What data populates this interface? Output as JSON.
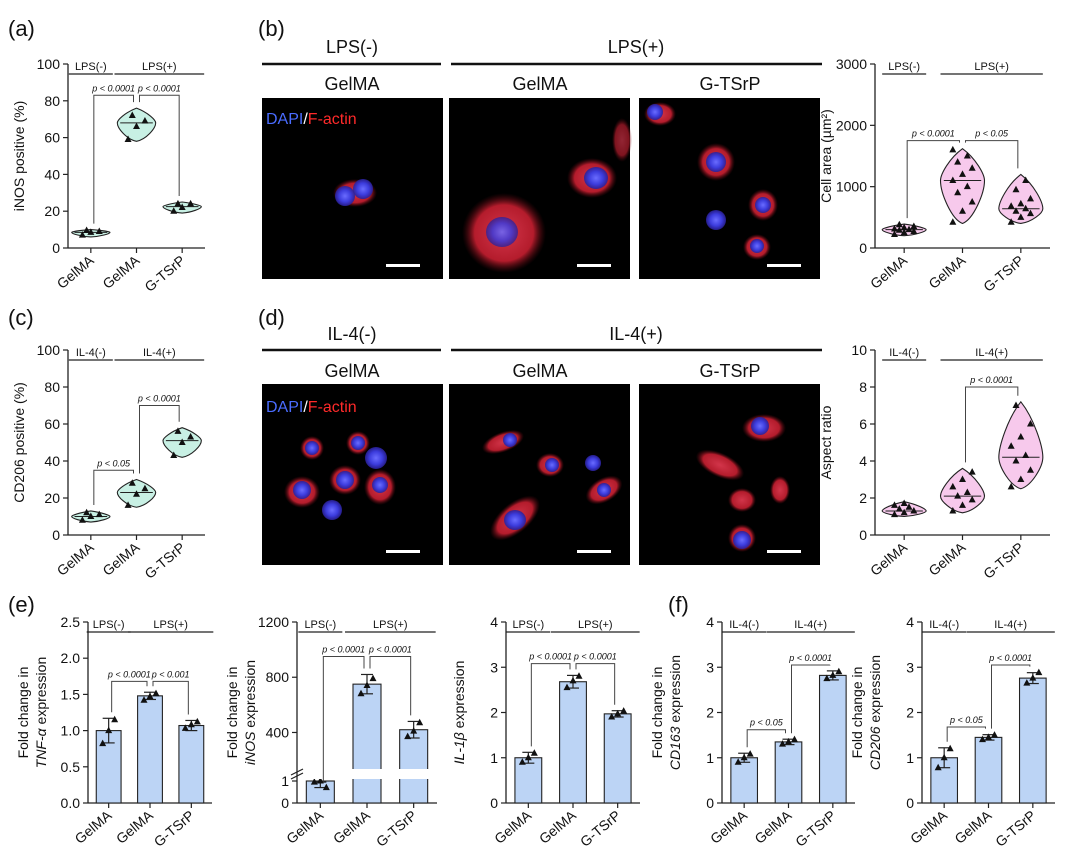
{
  "panel_letters": [
    "(a)",
    "(b)",
    "(c)",
    "(d)",
    "(e)",
    "(f)"
  ],
  "micrographs": {
    "b": {
      "headers": {
        "left": "LPS(-)",
        "right": "LPS(+)"
      },
      "subheaders": [
        "GelMA",
        "GelMA",
        "G-TSrP"
      ],
      "stain": {
        "a": "DAPI",
        "sep": "/",
        "b": "F-actin"
      }
    },
    "d": {
      "headers": {
        "left": "IL-4(-)",
        "right": "IL-4(+)"
      },
      "subheaders": [
        "GelMA",
        "GelMA",
        "G-TSrP"
      ],
      "stain": {
        "a": "DAPI",
        "sep": "/",
        "b": "F-actin"
      }
    }
  },
  "chart_data": [
    {
      "id": "a",
      "type": "violin",
      "categories": [
        "GelMA",
        "GelMA",
        "G-TSrP"
      ],
      "ylabel": "iNOS positive (%)",
      "ylim": [
        0,
        100
      ],
      "yticks": [
        0,
        20,
        40,
        60,
        80,
        100
      ],
      "groups": [
        {
          "label": "LPS(-)",
          "from": 0,
          "to": 0
        },
        {
          "label": "LPS(+)",
          "from": 1,
          "to": 2
        }
      ],
      "points": [
        [
          7,
          8.5,
          9,
          9.5
        ],
        [
          59,
          66,
          69,
          72
        ],
        [
          20,
          22,
          24,
          24
        ]
      ],
      "ranges": [
        [
          6,
          10
        ],
        [
          58,
          76
        ],
        [
          19,
          25
        ]
      ],
      "medians": [
        8.5,
        68,
        22.5
      ],
      "comparisons": [
        {
          "a": 0,
          "b": 1,
          "label": "p < 0.0001",
          "y": 83
        },
        {
          "a": 1,
          "b": 2,
          "label": "p < 0.0001",
          "y": 83
        }
      ]
    },
    {
      "id": "b",
      "type": "violin",
      "categories": [
        "GelMA",
        "GelMA",
        "G-TSrP"
      ],
      "ylabel": "Cell area (µm²)",
      "ylim": [
        0,
        3000
      ],
      "yticks": [
        0,
        1000,
        2000,
        3000
      ],
      "groups": [
        {
          "label": "LPS(-)",
          "from": 0,
          "to": 0
        },
        {
          "label": "LPS(+)",
          "from": 1,
          "to": 2
        }
      ],
      "points": [
        [
          220,
          250,
          270,
          290,
          300,
          310,
          330,
          350,
          380
        ],
        [
          420,
          600,
          750,
          900,
          1000,
          1100,
          1200,
          1300,
          1400,
          1500,
          1600
        ],
        [
          420,
          500,
          560,
          600,
          640,
          680,
          720,
          800,
          950,
          1100
        ]
      ],
      "ranges": [
        [
          200,
          390
        ],
        [
          400,
          1620
        ],
        [
          400,
          1200
        ]
      ],
      "medians": [
        300,
        1100,
        640
      ],
      "comparisons": [
        {
          "a": 0,
          "b": 1,
          "label": "p < 0.0001",
          "y": 1750
        },
        {
          "a": 1,
          "b": 2,
          "label": "p < 0.05",
          "y": 1750
        }
      ]
    },
    {
      "id": "c",
      "type": "violin",
      "categories": [
        "GelMA",
        "GelMA",
        "G-TSrP"
      ],
      "ylabel": "CD206 positive (%)",
      "ylim": [
        0,
        100
      ],
      "yticks": [
        0,
        20,
        40,
        60,
        80,
        100
      ],
      "groups": [
        {
          "label": "IL-4(-)",
          "from": 0,
          "to": 0
        },
        {
          "label": "IL-4(+)",
          "from": 1,
          "to": 2
        }
      ],
      "points": [
        [
          8,
          10,
          11,
          12
        ],
        [
          16,
          22,
          25,
          28
        ],
        [
          43,
          50,
          53,
          56
        ]
      ],
      "ranges": [
        [
          7,
          13
        ],
        [
          15,
          30
        ],
        [
          42,
          58
        ]
      ],
      "medians": [
        10,
        23,
        51
      ],
      "comparisons": [
        {
          "a": 0,
          "b": 1,
          "label": "p < 0.05",
          "y": 35
        },
        {
          "a": 1,
          "b": 2,
          "label": "p < 0.0001",
          "y": 70
        }
      ]
    },
    {
      "id": "d",
      "type": "violin",
      "categories": [
        "GelMA",
        "GelMA",
        "G-TSrP"
      ],
      "ylabel": "Aspect ratio",
      "ylim": [
        0,
        10
      ],
      "yticks": [
        0,
        2,
        4,
        6,
        8,
        10
      ],
      "groups": [
        {
          "label": "IL-4(-)",
          "from": 0,
          "to": 0
        },
        {
          "label": "IL-4(+)",
          "from": 1,
          "to": 2
        }
      ],
      "points": [
        [
          1.1,
          1.2,
          1.3,
          1.4,
          1.5,
          1.6,
          1.7
        ],
        [
          1.3,
          1.6,
          1.9,
          2.1,
          2.3,
          2.6,
          3.0,
          3.4
        ],
        [
          2.6,
          3.0,
          3.5,
          4.0,
          4.3,
          4.8,
          5.3,
          6.0,
          7.0
        ]
      ],
      "ranges": [
        [
          1.0,
          1.8
        ],
        [
          1.2,
          3.6
        ],
        [
          2.5,
          7.2
        ]
      ],
      "medians": [
        1.3,
        2.1,
        4.2
      ],
      "comparisons": [
        {
          "a": 1,
          "b": 2,
          "label": "p < 0.0001",
          "y": 8.0
        }
      ]
    },
    {
      "id": "e1",
      "type": "bar",
      "categories": [
        "GelMA",
        "GelMA",
        "G-TSrP"
      ],
      "ylabel_parts": [
        "Fold change in",
        "TNF-α",
        " expression"
      ],
      "ylim": [
        0,
        2.5
      ],
      "yticks": [
        0.0,
        0.5,
        1.0,
        1.5,
        2.0,
        2.5
      ],
      "ytick_labels": [
        "0.0",
        "0.5",
        "1.0",
        "1.5",
        "2.0",
        "2.5"
      ],
      "groups": [
        {
          "label": "LPS(-)",
          "from": 0,
          "to": 0
        },
        {
          "label": "LPS(+)",
          "from": 1,
          "to": 2
        }
      ],
      "values": [
        1.0,
        1.48,
        1.07
      ],
      "errors": [
        0.17,
        0.05,
        0.07
      ],
      "points": [
        [
          0.82,
          1.0,
          1.15
        ],
        [
          1.42,
          1.47,
          1.51
        ],
        [
          1.03,
          1.08,
          1.12
        ]
      ],
      "comparisons": [
        {
          "a": 0,
          "b": 1,
          "label": "p < 0.0001",
          "y": 1.68
        },
        {
          "a": 1,
          "b": 2,
          "label": "p < 0.001",
          "y": 1.68
        }
      ]
    },
    {
      "id": "e2",
      "type": "bar",
      "broken_axis": true,
      "categories": [
        "GelMA",
        "GelMA",
        "G-TSrP"
      ],
      "ylabel_parts": [
        "Fold change in",
        "iNOS",
        " expression"
      ],
      "ylim": [
        0,
        1200
      ],
      "yticks": [
        0,
        1,
        400,
        800,
        1200
      ],
      "ytick_labels": [
        "0",
        "1",
        "400",
        "800",
        "1200"
      ],
      "groups": [
        {
          "label": "LPS(-)",
          "from": 0,
          "to": 0
        },
        {
          "label": "LPS(+)",
          "from": 1,
          "to": 2
        }
      ],
      "values": [
        1.0,
        750,
        420
      ],
      "errors": [
        0.05,
        70,
        60
      ],
      "points": [
        [
          0.95,
          1.0,
          1.04
        ],
        [
          680,
          740,
          790
        ],
        [
          370,
          410,
          470
        ]
      ],
      "comparisons": [
        {
          "a": 0,
          "b": 1,
          "label": "p < 0.0001",
          "y": 950
        },
        {
          "a": 1,
          "b": 2,
          "label": "p < 0.0001",
          "y": 950
        }
      ]
    },
    {
      "id": "e3",
      "type": "bar",
      "categories": [
        "GelMA",
        "GelMA",
        "G-TSrP"
      ],
      "ylabel_parts": [
        "",
        "IL-1β",
        " expression"
      ],
      "ylim": [
        0,
        4
      ],
      "yticks": [
        0,
        1,
        2,
        3,
        4
      ],
      "ytick_labels": [
        "0",
        "1",
        "2",
        "3",
        "4"
      ],
      "groups": [
        {
          "label": "LPS(-)",
          "from": 0,
          "to": 0
        },
        {
          "label": "LPS(+)",
          "from": 1,
          "to": 2
        }
      ],
      "values": [
        1.0,
        2.68,
        1.97
      ],
      "errors": [
        0.12,
        0.14,
        0.07
      ],
      "points": [
        [
          0.9,
          1.0,
          1.1
        ],
        [
          2.55,
          2.7,
          2.8
        ],
        [
          1.9,
          1.97,
          2.03
        ]
      ],
      "comparisons": [
        {
          "a": 0,
          "b": 1,
          "label": "p < 0.0001",
          "y": 3.08
        },
        {
          "a": 1,
          "b": 2,
          "label": "p < 0.0001",
          "y": 3.08
        }
      ]
    },
    {
      "id": "f1",
      "type": "bar",
      "categories": [
        "GelMA",
        "GelMA",
        "G-TSrP"
      ],
      "ylabel_parts": [
        "Fold change in",
        "CD163",
        " expression"
      ],
      "ylim": [
        0,
        4
      ],
      "yticks": [
        0,
        1,
        2,
        3,
        4
      ],
      "ytick_labels": [
        "0",
        "1",
        "2",
        "3",
        "4"
      ],
      "groups": [
        {
          "label": "IL-4(-)",
          "from": 0,
          "to": 0
        },
        {
          "label": "IL-4(+)",
          "from": 1,
          "to": 2
        }
      ],
      "values": [
        1.0,
        1.35,
        2.82
      ],
      "errors": [
        0.1,
        0.06,
        0.1
      ],
      "points": [
        [
          0.9,
          1.0,
          1.08
        ],
        [
          1.3,
          1.35,
          1.4
        ],
        [
          2.75,
          2.82,
          2.9
        ]
      ],
      "comparisons": [
        {
          "a": 0,
          "b": 1,
          "label": "p < 0.05",
          "y": 1.62
        },
        {
          "a": 1,
          "b": 2,
          "label": "p < 0.0001",
          "y": 3.05
        }
      ]
    },
    {
      "id": "f2",
      "type": "bar",
      "categories": [
        "GelMA",
        "GelMA",
        "G-TSrP"
      ],
      "ylabel_parts": [
        "Fold change in",
        "CD206",
        " expression"
      ],
      "ylim": [
        0,
        4
      ],
      "yticks": [
        0,
        1,
        2,
        3,
        4
      ],
      "ytick_labels": [
        "0",
        "1",
        "2",
        "3",
        "4"
      ],
      "groups": [
        {
          "label": "IL-4(-)",
          "from": 0,
          "to": 0
        },
        {
          "label": "IL-4(+)",
          "from": 1,
          "to": 2
        }
      ],
      "values": [
        1.0,
        1.45,
        2.76
      ],
      "errors": [
        0.22,
        0.06,
        0.12
      ],
      "points": [
        [
          0.78,
          1.0,
          1.2
        ],
        [
          1.4,
          1.45,
          1.5
        ],
        [
          2.65,
          2.76,
          2.88
        ]
      ],
      "comparisons": [
        {
          "a": 0,
          "b": 1,
          "label": "p < 0.05",
          "y": 1.68
        },
        {
          "a": 1,
          "b": 2,
          "label": "p < 0.0001",
          "y": 3.05
        }
      ]
    }
  ]
}
